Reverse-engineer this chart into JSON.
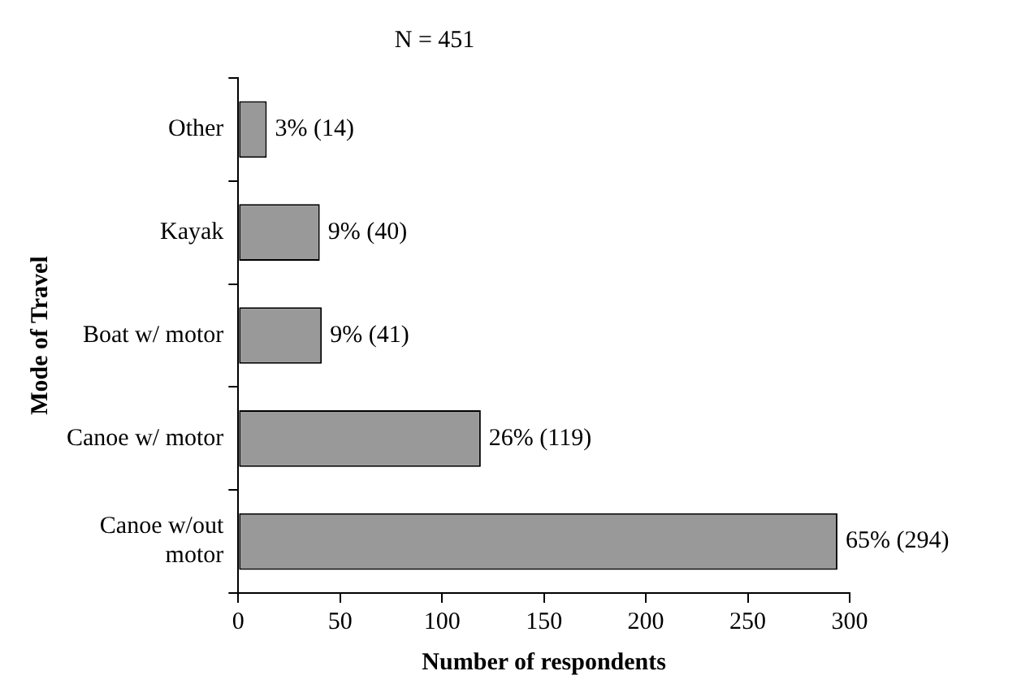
{
  "chart_data": {
    "type": "bar",
    "orientation": "horizontal",
    "title": "N = 451",
    "xlabel": "Number of respondents",
    "ylabel": "Mode of Travel",
    "categories": [
      "Other",
      "Kayak",
      "Boat w/ motor",
      "Canoe w/ motor",
      "Canoe w/out motor"
    ],
    "values": [
      14,
      40,
      41,
      119,
      294
    ],
    "value_labels": [
      "3% (14)",
      "9% (40)",
      "9% (41)",
      "26% (119)",
      "65% (294)"
    ],
    "color": "#999999",
    "xlim": [
      0,
      300
    ],
    "xticks": [
      0,
      50,
      100,
      150,
      200,
      250,
      300
    ],
    "grid": false,
    "legend": false
  }
}
